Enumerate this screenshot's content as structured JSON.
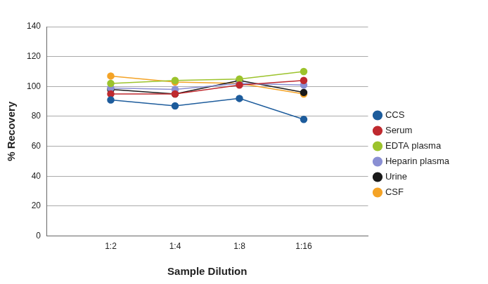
{
  "chart_data": {
    "type": "line",
    "x_label": "Sample Dilution",
    "y_label": "% Recovery",
    "categories": [
      null,
      "1:2",
      "1:4",
      "1:8",
      "1:16",
      null
    ],
    "series": [
      {
        "name": "CCS",
        "color": "#1d5c9c",
        "values": [
          null,
          91,
          87,
          92,
          78,
          null
        ]
      },
      {
        "name": "Serum",
        "color": "#bf2a2f",
        "values": [
          null,
          95,
          95,
          101,
          104,
          null
        ]
      },
      {
        "name": "EDTA plasma",
        "color": "#9cc32c",
        "values": [
          null,
          102,
          104,
          105,
          110,
          null
        ]
      },
      {
        "name": "Heparin plasma",
        "color": "#8a8fd3",
        "values": [
          null,
          99,
          98,
          102,
          101,
          null
        ]
      },
      {
        "name": "Urine",
        "color": "#1a1a1a",
        "values": [
          null,
          98,
          95,
          104,
          96,
          null
        ]
      },
      {
        "name": "CSF",
        "color": "#f4a326",
        "values": [
          null,
          107,
          103,
          102,
          95,
          null
        ]
      }
    ],
    "ylim": [
      0,
      140
    ],
    "yticks": [
      0,
      20,
      40,
      60,
      80,
      100,
      120,
      140
    ],
    "grid": true,
    "legend": "right",
    "marker": "circle"
  }
}
